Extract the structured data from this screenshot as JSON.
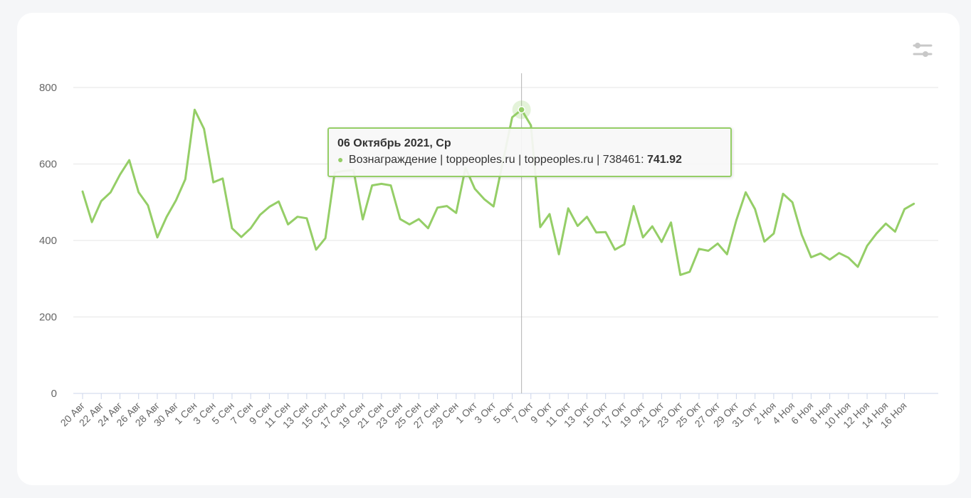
{
  "colors": {
    "series": "#95ce67",
    "grid": "#e6e6e6",
    "axis": "#ccd6eb",
    "crosshair": "#b3b3b3",
    "tick_text": "#666666"
  },
  "controls": {
    "settings_icon": "sliders-icon"
  },
  "tooltip": {
    "title": "06 Октябрь 2021, Ср",
    "series_label": "Вознаграждение | toppeoples.ru | toppeoples.ru | 738461:",
    "value": "741.92"
  },
  "chart_data": {
    "type": "line",
    "title": "",
    "xlabel": "",
    "ylabel": "",
    "ylim": [
      0,
      800
    ],
    "y_ticks": [
      0,
      200,
      400,
      600,
      800
    ],
    "grid": true,
    "legend": "none",
    "x_tick_labels": [
      "20 Авг",
      "22 Авг",
      "24 Авг",
      "26 Авг",
      "28 Авг",
      "30 Авг",
      "1 Сен",
      "3 Сен",
      "5 Сен",
      "7 Сен",
      "9 Сен",
      "11 Сен",
      "13 Сен",
      "15 Сен",
      "17 Сен",
      "19 Сен",
      "21 Сен",
      "23 Сен",
      "25 Сен",
      "27 Сен",
      "29 Сен",
      "1 Окт",
      "3 Окт",
      "5 Окт",
      "7 Окт",
      "9 Окт",
      "11 Окт",
      "13 Окт",
      "15 Окт",
      "17 Окт",
      "19 Окт",
      "21 Окт",
      "23 Окт",
      "25 Окт",
      "27 Окт",
      "29 Окт",
      "31 Окт",
      "2 Ноя",
      "4 Ноя",
      "6 Ноя",
      "8 Ноя",
      "10 Ноя",
      "12 Ноя",
      "14 Ноя",
      "16 Ноя"
    ],
    "x_start": "2021-08-20",
    "x_end": "2021-11-17",
    "highlight": {
      "x": "2021-10-06",
      "y": 741.92
    },
    "series": [
      {
        "values": [
          528,
          448,
          503,
          526,
          572,
          610,
          526,
          492,
          408,
          462,
          505,
          560,
          742,
          692,
          552,
          562,
          432,
          409,
          432,
          467,
          488,
          502,
          442,
          462,
          458,
          376,
          406,
          578,
          582,
          584,
          455,
          544,
          548,
          544,
          456,
          442,
          456,
          432,
          486,
          490,
          472,
          590,
          535,
          508,
          489,
          606,
          722,
          741.92,
          701,
          435,
          469,
          364,
          484,
          438,
          462,
          421,
          422,
          376,
          390,
          490,
          408,
          437,
          396,
          447,
          310,
          318,
          378,
          373,
          392,
          364,
          453,
          526,
          482,
          397,
          418,
          522,
          500,
          415,
          356,
          366,
          350,
          367,
          355,
          331,
          386,
          418,
          444,
          423,
          482,
          496
        ]
      }
    ]
  }
}
